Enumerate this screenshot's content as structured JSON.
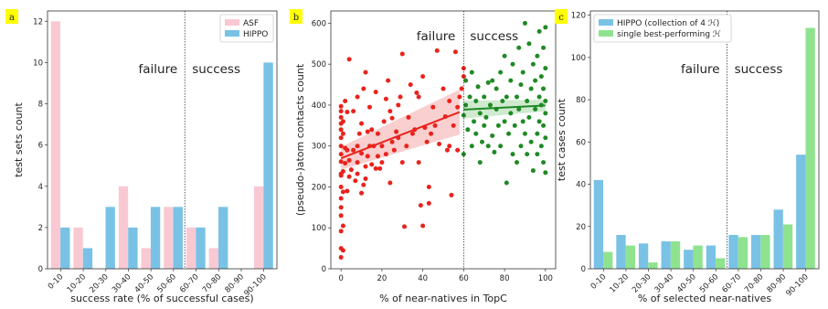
{
  "chart_data": [
    {
      "type": "bar",
      "panel_label": "a",
      "categories": [
        "0-10",
        "10-20",
        "20-30",
        "30-40",
        "40-50",
        "50-60",
        "60-70",
        "70-80",
        "80-90",
        "90-100"
      ],
      "series": [
        {
          "name": "ASF",
          "color": "#f9c9d3",
          "values": [
            12,
            2,
            0,
            4,
            1,
            3,
            2,
            1,
            0,
            4
          ]
        },
        {
          "name": "HIPPO",
          "color": "#79c2e6",
          "values": [
            2,
            1,
            3,
            2,
            3,
            3,
            2,
            3,
            0,
            10
          ]
        }
      ],
      "xlabel": "success rate (% of successful cases)",
      "ylabel": "test sets count",
      "ylim": [
        0,
        12.5
      ],
      "yticks": [
        0,
        2,
        4,
        6,
        8,
        10,
        12
      ],
      "regions": {
        "left": "failure",
        "right": "success",
        "divider_after_category": "50-60"
      },
      "legend": "top-right"
    },
    {
      "type": "scatter",
      "panel_label": "b",
      "xlabel": "% of near-natives in TopC",
      "ylabel": "(pseudo-)atom contacts count",
      "xlim": [
        -5,
        105
      ],
      "ylim": [
        0,
        630
      ],
      "xticks": [
        0,
        20,
        40,
        60,
        80,
        100
      ],
      "yticks": [
        0,
        100,
        200,
        300,
        400,
        500,
        600
      ],
      "regions": {
        "left": "failure",
        "right": "success",
        "divider_x": 60
      },
      "series": [
        {
          "color": "#e8231c",
          "fit": {
            "x": [
              0,
              58
            ],
            "y": [
              270,
              383
            ]
          },
          "points": [
            [
              0,
              28
            ],
            [
              0,
              50
            ],
            [
              0,
              92
            ],
            [
              0,
              130
            ],
            [
              0,
              150
            ],
            [
              0,
              172
            ],
            [
              0,
              200
            ],
            [
              0,
              228
            ],
            [
              0,
              232
            ],
            [
              0,
              262
            ],
            [
              0,
              280
            ],
            [
              0,
              300
            ],
            [
              0,
              320
            ],
            [
              0,
              340
            ],
            [
              0,
              355
            ],
            [
              0,
              370
            ],
            [
              0,
              385
            ],
            [
              0,
              397
            ],
            [
              1,
              45
            ],
            [
              1,
              105
            ],
            [
              1,
              188
            ],
            [
              1,
              238
            ],
            [
              1,
              330
            ],
            [
              1,
              360
            ],
            [
              2,
              258
            ],
            [
              2,
              295
            ],
            [
              2,
              410
            ],
            [
              3,
              190
            ],
            [
              3,
              290
            ],
            [
              3,
              383
            ],
            [
              4,
              225
            ],
            [
              4,
              265
            ],
            [
              4,
              512
            ],
            [
              5,
              242
            ],
            [
              6,
              290
            ],
            [
              6,
              385
            ],
            [
              7,
              215
            ],
            [
              8,
              232
            ],
            [
              8,
              260
            ],
            [
              8,
              300
            ],
            [
              8,
              420
            ],
            [
              9,
              330
            ],
            [
              10,
              185
            ],
            [
              10,
              282
            ],
            [
              10,
              355
            ],
            [
              11,
              205
            ],
            [
              11,
              440
            ],
            [
              12,
              220
            ],
            [
              12,
              250
            ],
            [
              12,
              480
            ],
            [
              13,
              275
            ],
            [
              13,
              335
            ],
            [
              14,
              300
            ],
            [
              14,
              395
            ],
            [
              15,
              255
            ],
            [
              15,
              340
            ],
            [
              16,
              300
            ],
            [
              17,
              245
            ],
            [
              17,
              432
            ],
            [
              18,
              275
            ],
            [
              18,
              330
            ],
            [
              19,
              245
            ],
            [
              20,
              260
            ],
            [
              20,
              300
            ],
            [
              21,
              360
            ],
            [
              22,
              280
            ],
            [
              22,
              415
            ],
            [
              23,
              460
            ],
            [
              24,
              210
            ],
            [
              24,
              385
            ],
            [
              25,
              310
            ],
            [
              25,
              368
            ],
            [
              26,
              290
            ],
            [
              27,
              335
            ],
            [
              28,
              320
            ],
            [
              28,
              400
            ],
            [
              29,
              420
            ],
            [
              30,
              525
            ],
            [
              30,
              260
            ],
            [
              31,
              103
            ],
            [
              32,
              300
            ],
            [
              33,
              370
            ],
            [
              34,
              450
            ],
            [
              35,
              330
            ],
            [
              36,
              340
            ],
            [
              37,
              430
            ],
            [
              38,
              260
            ],
            [
              38,
              420
            ],
            [
              39,
              155
            ],
            [
              40,
              470
            ],
            [
              40,
              105
            ],
            [
              41,
              345
            ],
            [
              42,
              310
            ],
            [
              43,
              160
            ],
            [
              43,
              200
            ],
            [
              44,
              330
            ],
            [
              45,
              395
            ],
            [
              46,
              350
            ],
            [
              47,
              533
            ],
            [
              48,
              305
            ],
            [
              50,
              440
            ],
            [
              51,
              372
            ],
            [
              52,
              290
            ],
            [
              53,
              300
            ],
            [
              53,
              410
            ],
            [
              54,
              180
            ],
            [
              55,
              350
            ],
            [
              56,
              530
            ],
            [
              57,
              290
            ],
            [
              57,
              395
            ],
            [
              58,
              420
            ],
            [
              59,
              440
            ],
            [
              60,
              470
            ],
            [
              60,
              490
            ]
          ]
        },
        {
          "color": "#1f8a24",
          "fit": {
            "x": [
              60,
              100
            ],
            "y": [
              389,
              399
            ]
          },
          "points": [
            [
              60,
              375
            ],
            [
              60,
              280
            ],
            [
              61,
              460
            ],
            [
              61,
              400
            ],
            [
              62,
              340
            ],
            [
              63,
              420
            ],
            [
              64,
              300
            ],
            [
              64,
              480
            ],
            [
              65,
              360
            ],
            [
              66,
              410
            ],
            [
              66,
              330
            ],
            [
              67,
              445
            ],
            [
              68,
              380
            ],
            [
              68,
              260
            ],
            [
              69,
              310
            ],
            [
              70,
              420
            ],
            [
              70,
              350
            ],
            [
              71,
              370
            ],
            [
              72,
              455
            ],
            [
              72,
              300
            ],
            [
              73,
              400
            ],
            [
              74,
              460
            ],
            [
              74,
              325
            ],
            [
              75,
              285
            ],
            [
              76,
              390
            ],
            [
              76,
              440
            ],
            [
              77,
              350
            ],
            [
              78,
              480
            ],
            [
              78,
              300
            ],
            [
              79,
              410
            ],
            [
              80,
              520
            ],
            [
              80,
              360
            ],
            [
              81,
              210
            ],
            [
              81,
              420
            ],
            [
              82,
              330
            ],
            [
              83,
              460
            ],
            [
              83,
              380
            ],
            [
              84,
              280
            ],
            [
              84,
              500
            ],
            [
              85,
              350
            ],
            [
              86,
              420
            ],
            [
              86,
              260
            ],
            [
              87,
              390
            ],
            [
              87,
              540
            ],
            [
              88,
              300
            ],
            [
              88,
              450
            ],
            [
              89,
              360
            ],
            [
              89,
              480
            ],
            [
              90,
              600
            ],
            [
              90,
              330
            ],
            [
              91,
              410
            ],
            [
              91,
              280
            ],
            [
              92,
              550
            ],
            [
              92,
              370
            ],
            [
              93,
              440
            ],
            [
              93,
              310
            ],
            [
              94,
              500
            ],
            [
              94,
              240
            ],
            [
              95,
              390
            ],
            [
              95,
              460
            ],
            [
              96,
              330
            ],
            [
              96,
              520
            ],
            [
              96,
              280
            ],
            [
              97,
              420
            ],
            [
              97,
              360
            ],
            [
              97,
              580
            ],
            [
              98,
              300
            ],
            [
              98,
              470
            ],
            [
              98,
              400
            ],
            [
              99,
              260
            ],
            [
              99,
              350
            ],
            [
              99,
              540
            ],
            [
              99,
              440
            ],
            [
              100,
              320
            ],
            [
              100,
              490
            ],
            [
              100,
              380
            ],
            [
              100,
              235
            ],
            [
              100,
              590
            ],
            [
              100,
              410
            ]
          ]
        }
      ]
    },
    {
      "type": "bar",
      "panel_label": "c",
      "categories": [
        "0-10",
        "10-20",
        "20-30",
        "30-40",
        "40-50",
        "50-60",
        "60-70",
        "70-80",
        "80-90",
        "90-100"
      ],
      "series": [
        {
          "name": "HIPPO (collection of 4 ℋ)",
          "color": "#79c2e6",
          "values": [
            42,
            16,
            12,
            13,
            9,
            11,
            16,
            16,
            28,
            54
          ]
        },
        {
          "name": "single best-performing ℋ",
          "color": "#8fe38f",
          "values": [
            8,
            11,
            3,
            13,
            11,
            5,
            15,
            16,
            21,
            114
          ]
        }
      ],
      "xlabel": "% of selected near-natives",
      "ylabel": "test cases count",
      "ylim": [
        0,
        122
      ],
      "yticks": [
        0,
        20,
        40,
        60,
        80,
        100,
        120
      ],
      "regions": {
        "left": "failure",
        "right": "success",
        "divider_after_category": "50-60"
      },
      "legend": "top-left"
    }
  ]
}
